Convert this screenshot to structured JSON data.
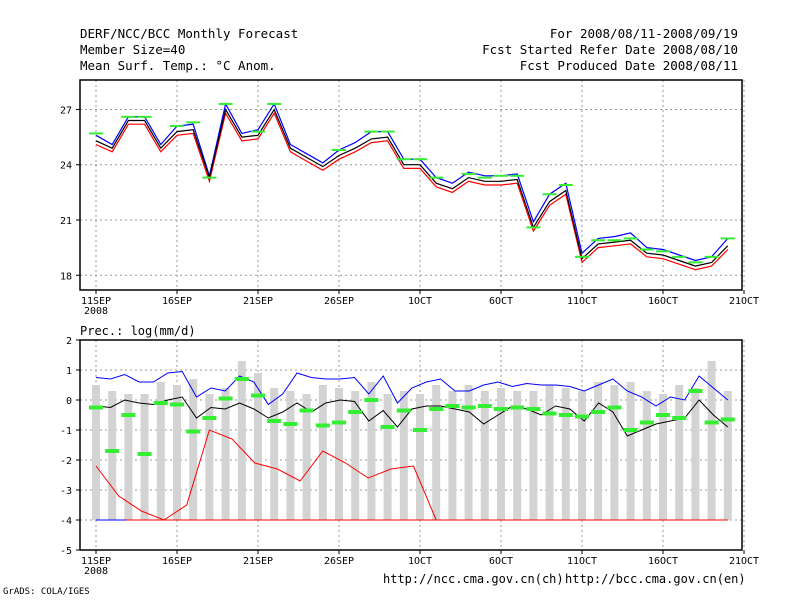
{
  "header": {
    "title": "DERF/NCC/BCC Monthly Forecast",
    "members": "Member Size=40",
    "variable": "Mean Surf. Temp.: °C Anom.",
    "period": "For 2008/08/11-2008/09/19",
    "started": "Fcst Started Refer Date 2008/08/10",
    "produced": "Fcst Produced Date 2008/08/11"
  },
  "footer": {
    "credit": "GrADS: COLA/IGES",
    "url_ch": "http://ncc.cma.gov.cn(ch)",
    "url_en": "http://bcc.cma.gov.cn(en)"
  },
  "colors": {
    "mean": "#000000",
    "upper": "#0000ff",
    "lower": "#ff0000",
    "obs": "#33ee33",
    "bar": "#d3d3d3",
    "grid": "#999999"
  },
  "chart_data": [
    {
      "type": "line",
      "title": "Mean Surf. Temp.: °C Anom.",
      "x_ticks": [
        "11SEP",
        "16SEP",
        "21SEP",
        "26SEP",
        "1OCT",
        "6OCT",
        "11OCT",
        "16OCT",
        "21OCT"
      ],
      "x_sublabel": "2008",
      "y_ticks": [
        18,
        21,
        24,
        27
      ],
      "ylim": [
        17.2,
        28.6
      ],
      "xlim": [
        0,
        38
      ],
      "series": [
        {
          "name": "ensemble-mean",
          "values": [
            25.3,
            24.9,
            26.4,
            26.4,
            24.9,
            25.8,
            25.9,
            23.3,
            27.0,
            25.5,
            25.6,
            27.0,
            24.9,
            24.4,
            23.9,
            24.5,
            24.9,
            25.4,
            25.5,
            24.0,
            24.0,
            23.0,
            22.7,
            23.3,
            23.1,
            23.1,
            23.2,
            20.6,
            22.0,
            22.6,
            18.9,
            19.7,
            19.8,
            19.9,
            19.2,
            19.1,
            18.8,
            18.5,
            18.7,
            19.6
          ]
        },
        {
          "name": "upper-member",
          "values": [
            25.6,
            25.1,
            26.6,
            26.6,
            25.1,
            26.1,
            26.2,
            23.4,
            27.3,
            25.7,
            25.9,
            27.3,
            25.1,
            24.6,
            24.1,
            24.8,
            25.2,
            25.8,
            25.8,
            24.3,
            24.3,
            23.3,
            23.0,
            23.6,
            23.4,
            23.4,
            23.5,
            20.9,
            22.4,
            23.0,
            19.2,
            20.0,
            20.1,
            20.3,
            19.5,
            19.4,
            19.1,
            18.8,
            19.0,
            20.0
          ]
        },
        {
          "name": "lower-member",
          "values": [
            25.1,
            24.7,
            26.2,
            26.2,
            24.7,
            25.6,
            25.7,
            23.1,
            26.8,
            25.3,
            25.4,
            26.8,
            24.7,
            24.2,
            23.7,
            24.3,
            24.7,
            25.2,
            25.3,
            23.8,
            23.8,
            22.8,
            22.5,
            23.1,
            22.9,
            22.9,
            23.0,
            20.4,
            21.8,
            22.4,
            18.7,
            19.5,
            19.6,
            19.7,
            19.0,
            18.9,
            18.6,
            18.3,
            18.5,
            19.4
          ]
        },
        {
          "name": "observed",
          "values": [
            25.7,
            null,
            26.6,
            26.6,
            null,
            26.1,
            26.3,
            23.3,
            27.3,
            null,
            25.8,
            27.3,
            null,
            null,
            null,
            24.8,
            null,
            25.8,
            25.8,
            24.3,
            24.3,
            23.3,
            null,
            23.5,
            23.3,
            23.4,
            23.4,
            20.6,
            22.4,
            22.9,
            19.0,
            19.9,
            19.9,
            20.0,
            19.4,
            19.3,
            19.0,
            18.7,
            19.0,
            20.0
          ]
        }
      ]
    },
    {
      "type": "bar",
      "title": "Prec.: log(mm/d)",
      "x_ticks": [
        "11SEP",
        "16SEP",
        "21SEP",
        "26SEP",
        "1OCT",
        "6OCT",
        "11OCT",
        "16OCT",
        "21OCT"
      ],
      "x_sublabel": "2008",
      "y_ticks": [
        -5,
        -4,
        -3,
        -2,
        -1,
        0,
        1,
        2
      ],
      "ylim": [
        -5,
        2
      ],
      "xlim": [
        0,
        38
      ],
      "bars": {
        "top": [
          0.5,
          0.3,
          0.2,
          0.2,
          0.6,
          0.5,
          0.7,
          0.2,
          0.4,
          1.3,
          0.9,
          0.4,
          0.3,
          0.2,
          0.5,
          0.4,
          0.3,
          0.6,
          0.2,
          0.3,
          0.2,
          0.5,
          0.3,
          0.5,
          0.3,
          0.4,
          0.3,
          0.3,
          0.5,
          0.4,
          0.3,
          0.6,
          0.5,
          0.6,
          0.3,
          0.2,
          0.5,
          0.4,
          1.3,
          0.3
        ],
        "bottom": [
          -4,
          -4,
          -4,
          -4,
          -4,
          -4,
          -4,
          -4,
          -4,
          -4,
          -4,
          -4,
          -4,
          -4,
          -4,
          -4,
          -4,
          -4,
          -4,
          -4,
          -4,
          -4,
          -4,
          -4,
          -4,
          -4,
          -4,
          -4,
          -4,
          -4,
          -4,
          -4,
          -4,
          -4,
          -4,
          -4,
          -4,
          -4,
          -4,
          -4
        ]
      },
      "series": [
        {
          "name": "upper-member",
          "values": [
            0.75,
            0.7,
            0.85,
            0.6,
            0.6,
            0.9,
            0.95,
            0.1,
            0.4,
            0.3,
            0.8,
            0.6,
            -0.15,
            0.2,
            0.9,
            0.75,
            0.7,
            0.7,
            0.75,
            0.2,
            0.8,
            -0.1,
            0.4,
            0.6,
            0.7,
            0.3,
            0.3,
            0.5,
            0.6,
            0.45,
            0.55,
            0.5,
            0.5,
            0.45,
            0.3,
            0.5,
            0.7,
            0.3,
            0.1,
            -0.2,
            0.1,
            0.0,
            0.8,
            0.4,
            0.0
          ]
        },
        {
          "name": "ensemble-mean",
          "values": [
            -0.2,
            -0.25,
            0.0,
            -0.1,
            -0.15,
            0.0,
            0.1,
            -0.6,
            -0.25,
            -0.3,
            -0.1,
            -0.3,
            -0.6,
            -0.4,
            -0.1,
            -0.4,
            -0.1,
            0.0,
            -0.05,
            -0.7,
            -0.35,
            -0.9,
            -0.3,
            -0.2,
            -0.2,
            -0.3,
            -0.4,
            -0.8,
            -0.5,
            -0.2,
            -0.3,
            -0.5,
            -0.2,
            -0.3,
            -0.7,
            -0.1,
            -0.4,
            -1.2,
            -1.0,
            -0.8,
            -0.7,
            -0.6,
            0.0,
            -0.5,
            -0.9
          ]
        },
        {
          "name": "lower-member",
          "values": [
            -2.2,
            -3.2,
            -3.7,
            -4.0,
            -3.5,
            -1.0,
            -1.3,
            -2.1,
            -2.3,
            -2.7,
            -1.7,
            -2.1,
            -2.6,
            -2.3,
            -2.2,
            -4.0,
            -4.0
          ]
        },
        {
          "name": "observed",
          "values": [
            -0.25,
            -1.7,
            -0.5,
            -1.8,
            -0.1,
            -0.15,
            -1.05,
            -0.6,
            0.05,
            0.7,
            0.15,
            -0.7,
            -0.8,
            -0.35,
            -0.85,
            -0.75,
            -0.4,
            0.0,
            -0.9,
            -0.35,
            -1.0,
            -0.3,
            -0.2,
            -0.25,
            -0.2,
            -0.3,
            -0.25,
            -0.3,
            -0.45,
            -0.5,
            -0.55,
            -0.4,
            -0.25,
            -1.0,
            -0.75,
            -0.5,
            -0.6,
            0.3,
            -0.75,
            -0.65
          ]
        }
      ]
    }
  ]
}
